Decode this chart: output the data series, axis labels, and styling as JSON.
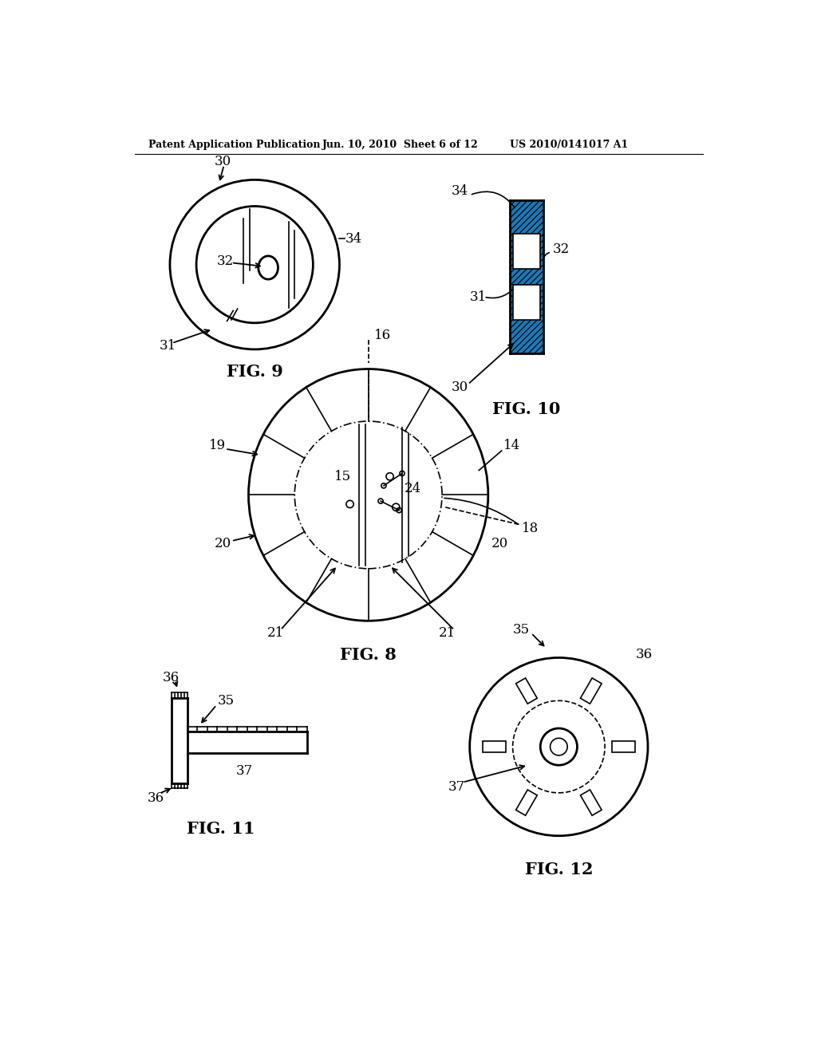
{
  "bg_color": "#ffffff",
  "header_left": "Patent Application Publication",
  "header_mid": "Jun. 10, 2010  Sheet 6 of 12",
  "header_right": "US 2010/0141017 A1"
}
